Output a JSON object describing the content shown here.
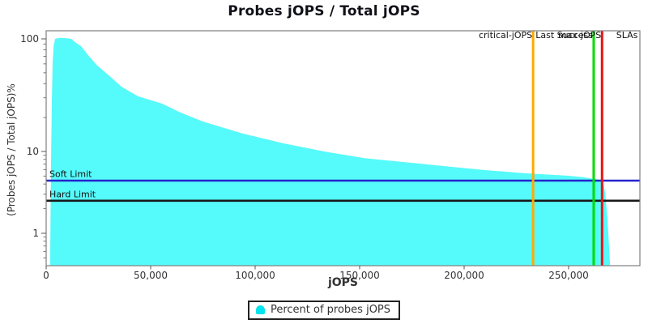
{
  "title": "Probes jOPS / Total jOPS",
  "colors": {
    "area": "#55FAFA",
    "legend_marker": "#00E4EE",
    "soft_limit": "#2424CC",
    "hard_limit": "#181818",
    "critical_jops_line": "#FFAA00",
    "last_success_line": "#00DD00",
    "max_jops_line": "#EE1111",
    "plot_border": "#808080",
    "tick_text": "#333333",
    "annotation_text": "#111111"
  },
  "chart_data": {
    "type": "area",
    "title": "Probes jOPS / Total jOPS",
    "xlabel": "jOPS",
    "ylabel": "(Probes jOPS / Total jOPS)%",
    "x_scale": "linear",
    "y_scale": "log",
    "xlim": [
      0,
      284000
    ],
    "ylim_pct": [
      0.4,
      118
    ],
    "grid": "off",
    "x_ticks": [
      {
        "value": 0,
        "label": "0"
      },
      {
        "value": 50000,
        "label": "50,000"
      },
      {
        "value": 100000,
        "label": "100,000"
      },
      {
        "value": 150000,
        "label": "150,000"
      },
      {
        "value": 200000,
        "label": "200,000"
      },
      {
        "value": 250000,
        "label": "250,000"
      }
    ],
    "y_ticks": [
      {
        "value": 100,
        "label": "100"
      },
      {
        "value": 10,
        "label": "10"
      },
      {
        "value": 1,
        "label": "1"
      }
    ],
    "y_minor_ticks": [
      90,
      80,
      70,
      60,
      50,
      40,
      30,
      20,
      9,
      8,
      7,
      6,
      5,
      4,
      3,
      2,
      0.9,
      0.8,
      0.7,
      0.6,
      0.5
    ],
    "series": [
      {
        "name": "Percent of probes jOPS",
        "color": "#55FAFA",
        "points": [
          [
            1900,
            0.42
          ],
          [
            2300,
            6
          ],
          [
            2700,
            28
          ],
          [
            3100,
            62
          ],
          [
            3600,
            88
          ],
          [
            4300,
            100
          ],
          [
            5500,
            101.5
          ],
          [
            7000,
            102
          ],
          [
            9500,
            101.5
          ],
          [
            12000,
            100
          ],
          [
            14000,
            93
          ],
          [
            16700,
            86
          ],
          [
            20500,
            70
          ],
          [
            24400,
            58
          ],
          [
            30200,
            47
          ],
          [
            36000,
            37.6
          ],
          [
            43800,
            31
          ],
          [
            55400,
            26.6
          ],
          [
            64000,
            22.3
          ],
          [
            74800,
            18.5
          ],
          [
            94200,
            14.4
          ],
          [
            113600,
            11.8
          ],
          [
            133000,
            10
          ],
          [
            152300,
            8.3
          ],
          [
            171700,
            7.4
          ],
          [
            191100,
            6.6
          ],
          [
            210500,
            5.9
          ],
          [
            229900,
            5.4
          ],
          [
            250000,
            5.05
          ],
          [
            257000,
            4.85
          ],
          [
            262000,
            4.62
          ],
          [
            266300,
            4.45
          ],
          [
            267400,
            3.2
          ],
          [
            268600,
            1.5
          ],
          [
            269800,
            0.42
          ]
        ]
      }
    ],
    "limit_lines": [
      {
        "label": "Soft Limit",
        "value_pct": 4.4,
        "color": "#2424CC"
      },
      {
        "label": "Hard Limit",
        "value_pct": 2.5,
        "color": "#181818"
      }
    ],
    "marker_lines": [
      {
        "label": "critical-jOPS",
        "x": 233000,
        "color": "#FFAA00",
        "has_line": true
      },
      {
        "label": "Last Success",
        "x": 262000,
        "color": "#00DD00",
        "has_line": true
      },
      {
        "label": "max-jOPS",
        "x": 266000,
        "color": "#EE1111",
        "has_line": true
      },
      {
        "label": "SLAs",
        "x": 283500,
        "color": null,
        "has_line": false
      }
    ],
    "legend": {
      "position": "bottom-center",
      "entries": [
        {
          "label": "Percent of probes jOPS",
          "color": "#00E4EE"
        }
      ]
    }
  }
}
